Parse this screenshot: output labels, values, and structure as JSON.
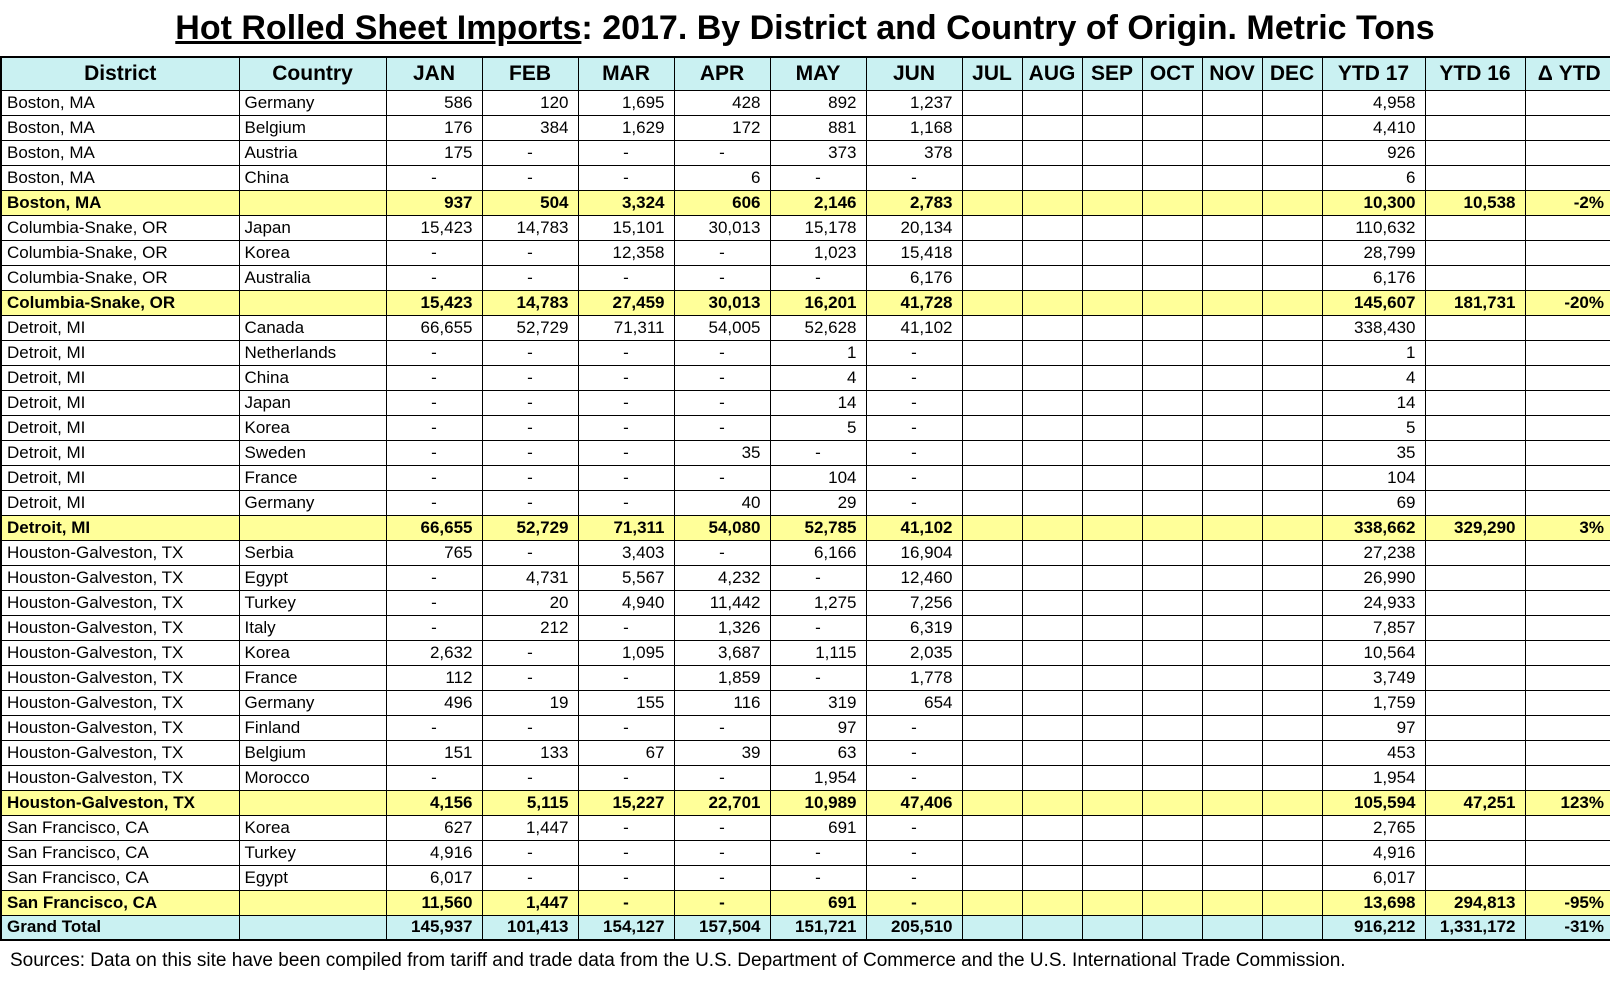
{
  "page": {
    "title_main": "Hot Rolled Sheet Imports",
    "title_rest": ": 2017. By District and Country of Origin. Metric Tons",
    "footer": "Sources: Data on this site have been compiled from tariff and trade data from the U.S. Department of Commerce and the U.S. International Trade Commission."
  },
  "colors": {
    "header_bg": "#caf1f2",
    "subtotal_bg": "#ffff99",
    "grandtotal_bg": "#caf1f2",
    "border": "#000000"
  },
  "chart_data": {
    "type": "table",
    "title": "Hot Rolled Sheet Imports: 2017. By District and Country of Origin. Metric Tons",
    "columns": [
      "District",
      "Country",
      "JAN",
      "FEB",
      "MAR",
      "APR",
      "MAY",
      "JUN",
      "JUL",
      "AUG",
      "SEP",
      "OCT",
      "NOV",
      "DEC",
      "YTD 17",
      "YTD 16",
      "Δ YTD"
    ],
    "rows": [
      {
        "row_type": "data",
        "district": "Boston, MA",
        "country": "Germany",
        "values": [
          "586",
          "120",
          "1,695",
          "428",
          "892",
          "1,237",
          "",
          "",
          "",
          "",
          "",
          "",
          "4,958",
          "",
          ""
        ]
      },
      {
        "row_type": "data",
        "district": "Boston, MA",
        "country": "Belgium",
        "values": [
          "176",
          "384",
          "1,629",
          "172",
          "881",
          "1,168",
          "",
          "",
          "",
          "",
          "",
          "",
          "4,410",
          "",
          ""
        ]
      },
      {
        "row_type": "data",
        "district": "Boston, MA",
        "country": "Austria",
        "values": [
          "175",
          "-",
          "-",
          "-",
          "373",
          "378",
          "",
          "",
          "",
          "",
          "",
          "",
          "926",
          "",
          ""
        ]
      },
      {
        "row_type": "data",
        "district": "Boston, MA",
        "country": "China",
        "values": [
          "-",
          "-",
          "-",
          "6",
          "-",
          "-",
          "",
          "",
          "",
          "",
          "",
          "",
          "6",
          "",
          ""
        ]
      },
      {
        "row_type": "subtotal",
        "district": "Boston, MA",
        "country": "",
        "values": [
          "937",
          "504",
          "3,324",
          "606",
          "2,146",
          "2,783",
          "",
          "",
          "",
          "",
          "",
          "",
          "10,300",
          "10,538",
          "-2%"
        ]
      },
      {
        "row_type": "data",
        "district": "Columbia-Snake, OR",
        "country": "Japan",
        "values": [
          "15,423",
          "14,783",
          "15,101",
          "30,013",
          "15,178",
          "20,134",
          "",
          "",
          "",
          "",
          "",
          "",
          "110,632",
          "",
          ""
        ]
      },
      {
        "row_type": "data",
        "district": "Columbia-Snake, OR",
        "country": "Korea",
        "values": [
          "-",
          "-",
          "12,358",
          "-",
          "1,023",
          "15,418",
          "",
          "",
          "",
          "",
          "",
          "",
          "28,799",
          "",
          ""
        ]
      },
      {
        "row_type": "data",
        "district": "Columbia-Snake, OR",
        "country": "Australia",
        "values": [
          "-",
          "-",
          "-",
          "-",
          "-",
          "6,176",
          "",
          "",
          "",
          "",
          "",
          "",
          "6,176",
          "",
          ""
        ]
      },
      {
        "row_type": "subtotal",
        "district": "Columbia-Snake, OR",
        "country": "",
        "values": [
          "15,423",
          "14,783",
          "27,459",
          "30,013",
          "16,201",
          "41,728",
          "",
          "",
          "",
          "",
          "",
          "",
          "145,607",
          "181,731",
          "-20%"
        ]
      },
      {
        "row_type": "data",
        "district": "Detroit, MI",
        "country": "Canada",
        "values": [
          "66,655",
          "52,729",
          "71,311",
          "54,005",
          "52,628",
          "41,102",
          "",
          "",
          "",
          "",
          "",
          "",
          "338,430",
          "",
          ""
        ]
      },
      {
        "row_type": "data",
        "district": "Detroit, MI",
        "country": "Netherlands",
        "values": [
          "-",
          "-",
          "-",
          "-",
          "1",
          "-",
          "",
          "",
          "",
          "",
          "",
          "",
          "1",
          "",
          ""
        ]
      },
      {
        "row_type": "data",
        "district": "Detroit, MI",
        "country": "China",
        "values": [
          "-",
          "-",
          "-",
          "-",
          "4",
          "-",
          "",
          "",
          "",
          "",
          "",
          "",
          "4",
          "",
          ""
        ]
      },
      {
        "row_type": "data",
        "district": "Detroit, MI",
        "country": "Japan",
        "values": [
          "-",
          "-",
          "-",
          "-",
          "14",
          "-",
          "",
          "",
          "",
          "",
          "",
          "",
          "14",
          "",
          ""
        ]
      },
      {
        "row_type": "data",
        "district": "Detroit, MI",
        "country": "Korea",
        "values": [
          "-",
          "-",
          "-",
          "-",
          "5",
          "-",
          "",
          "",
          "",
          "",
          "",
          "",
          "5",
          "",
          ""
        ]
      },
      {
        "row_type": "data",
        "district": "Detroit, MI",
        "country": "Sweden",
        "values": [
          "-",
          "-",
          "-",
          "35",
          "-",
          "-",
          "",
          "",
          "",
          "",
          "",
          "",
          "35",
          "",
          ""
        ]
      },
      {
        "row_type": "data",
        "district": "Detroit, MI",
        "country": "France",
        "values": [
          "-",
          "-",
          "-",
          "-",
          "104",
          "-",
          "",
          "",
          "",
          "",
          "",
          "",
          "104",
          "",
          ""
        ]
      },
      {
        "row_type": "data",
        "district": "Detroit, MI",
        "country": "Germany",
        "values": [
          "-",
          "-",
          "-",
          "40",
          "29",
          "-",
          "",
          "",
          "",
          "",
          "",
          "",
          "69",
          "",
          ""
        ]
      },
      {
        "row_type": "subtotal",
        "district": "Detroit, MI",
        "country": "",
        "values": [
          "66,655",
          "52,729",
          "71,311",
          "54,080",
          "52,785",
          "41,102",
          "",
          "",
          "",
          "",
          "",
          "",
          "338,662",
          "329,290",
          "3%"
        ]
      },
      {
        "row_type": "data",
        "district": "Houston-Galveston, TX",
        "country": "Serbia",
        "values": [
          "765",
          "-",
          "3,403",
          "-",
          "6,166",
          "16,904",
          "",
          "",
          "",
          "",
          "",
          "",
          "27,238",
          "",
          ""
        ]
      },
      {
        "row_type": "data",
        "district": "Houston-Galveston, TX",
        "country": "Egypt",
        "values": [
          "-",
          "4,731",
          "5,567",
          "4,232",
          "-",
          "12,460",
          "",
          "",
          "",
          "",
          "",
          "",
          "26,990",
          "",
          ""
        ]
      },
      {
        "row_type": "data",
        "district": "Houston-Galveston, TX",
        "country": "Turkey",
        "values": [
          "-",
          "20",
          "4,940",
          "11,442",
          "1,275",
          "7,256",
          "",
          "",
          "",
          "",
          "",
          "",
          "24,933",
          "",
          ""
        ]
      },
      {
        "row_type": "data",
        "district": "Houston-Galveston, TX",
        "country": "Italy",
        "values": [
          "-",
          "212",
          "-",
          "1,326",
          "-",
          "6,319",
          "",
          "",
          "",
          "",
          "",
          "",
          "7,857",
          "",
          ""
        ]
      },
      {
        "row_type": "data",
        "district": "Houston-Galveston, TX",
        "country": "Korea",
        "values": [
          "2,632",
          "-",
          "1,095",
          "3,687",
          "1,115",
          "2,035",
          "",
          "",
          "",
          "",
          "",
          "",
          "10,564",
          "",
          ""
        ]
      },
      {
        "row_type": "data",
        "district": "Houston-Galveston, TX",
        "country": "France",
        "values": [
          "112",
          "-",
          "-",
          "1,859",
          "-",
          "1,778",
          "",
          "",
          "",
          "",
          "",
          "",
          "3,749",
          "",
          ""
        ]
      },
      {
        "row_type": "data",
        "district": "Houston-Galveston, TX",
        "country": "Germany",
        "values": [
          "496",
          "19",
          "155",
          "116",
          "319",
          "654",
          "",
          "",
          "",
          "",
          "",
          "",
          "1,759",
          "",
          ""
        ]
      },
      {
        "row_type": "data",
        "district": "Houston-Galveston, TX",
        "country": "Finland",
        "values": [
          "-",
          "-",
          "-",
          "-",
          "97",
          "-",
          "",
          "",
          "",
          "",
          "",
          "",
          "97",
          "",
          ""
        ]
      },
      {
        "row_type": "data",
        "district": "Houston-Galveston, TX",
        "country": "Belgium",
        "values": [
          "151",
          "133",
          "67",
          "39",
          "63",
          "-",
          "",
          "",
          "",
          "",
          "",
          "",
          "453",
          "",
          ""
        ]
      },
      {
        "row_type": "data",
        "district": "Houston-Galveston, TX",
        "country": "Morocco",
        "values": [
          "-",
          "-",
          "-",
          "-",
          "1,954",
          "-",
          "",
          "",
          "",
          "",
          "",
          "",
          "1,954",
          "",
          ""
        ]
      },
      {
        "row_type": "subtotal",
        "district": "Houston-Galveston, TX",
        "country": "",
        "values": [
          "4,156",
          "5,115",
          "15,227",
          "22,701",
          "10,989",
          "47,406",
          "",
          "",
          "",
          "",
          "",
          "",
          "105,594",
          "47,251",
          "123%"
        ]
      },
      {
        "row_type": "data",
        "district": "San Francisco, CA",
        "country": "Korea",
        "values": [
          "627",
          "1,447",
          "-",
          "-",
          "691",
          "-",
          "",
          "",
          "",
          "",
          "",
          "",
          "2,765",
          "",
          ""
        ]
      },
      {
        "row_type": "data",
        "district": "San Francisco, CA",
        "country": "Turkey",
        "values": [
          "4,916",
          "-",
          "-",
          "-",
          "-",
          "-",
          "",
          "",
          "",
          "",
          "",
          "",
          "4,916",
          "",
          ""
        ]
      },
      {
        "row_type": "data",
        "district": "San Francisco, CA",
        "country": "Egypt",
        "values": [
          "6,017",
          "-",
          "-",
          "-",
          "-",
          "-",
          "",
          "",
          "",
          "",
          "",
          "",
          "6,017",
          "",
          ""
        ]
      },
      {
        "row_type": "subtotal",
        "district": "San Francisco, CA",
        "country": "",
        "values": [
          "11,560",
          "1,447",
          "-",
          "-",
          "691",
          "-",
          "",
          "",
          "",
          "",
          "",
          "",
          "13,698",
          "294,813",
          "-95%"
        ]
      },
      {
        "row_type": "grandtotal",
        "district": "Grand Total",
        "country": "",
        "values": [
          "145,937",
          "101,413",
          "154,127",
          "157,504",
          "151,721",
          "205,510",
          "",
          "",
          "",
          "",
          "",
          "",
          "916,212",
          "1,331,172",
          "-31%"
        ]
      }
    ]
  }
}
